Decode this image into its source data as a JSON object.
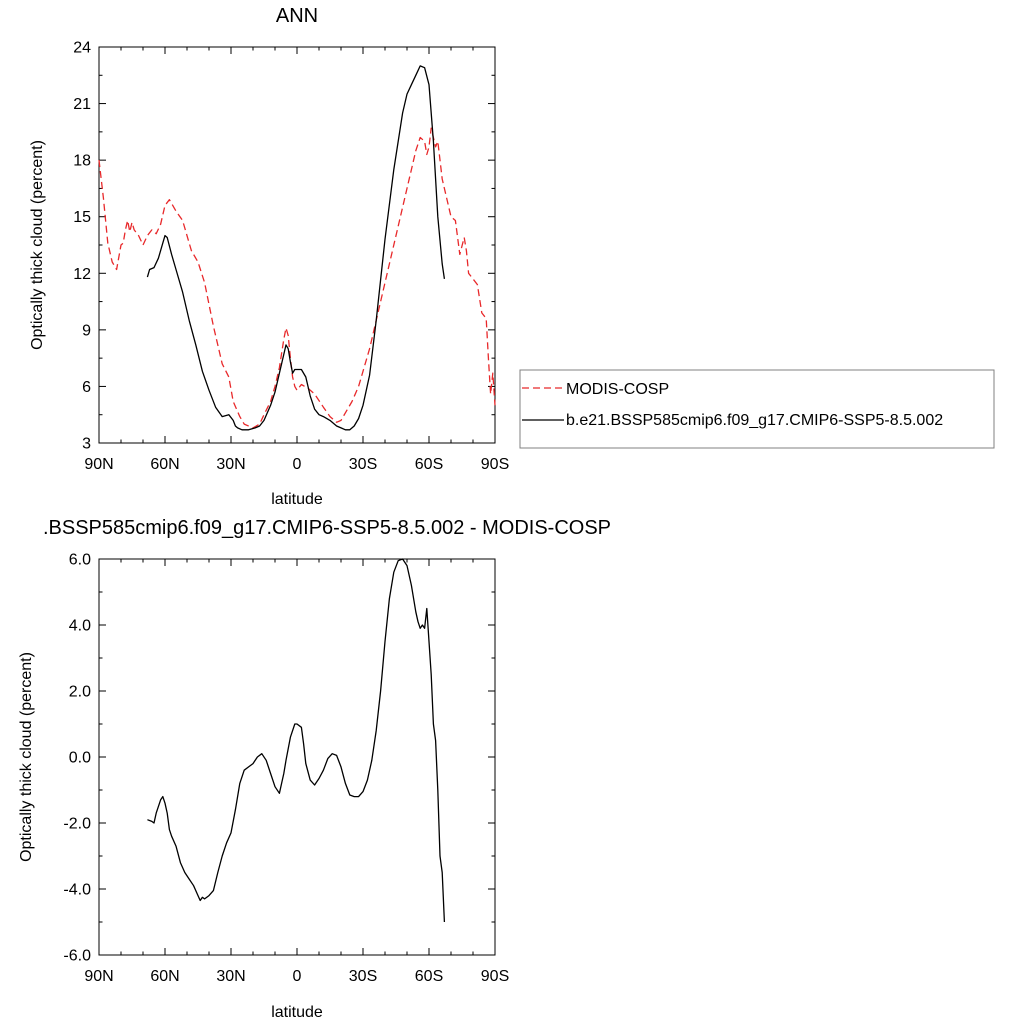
{
  "chart_data": [
    {
      "type": "line",
      "title": "ANN",
      "xlabel": "latitude",
      "ylabel": "Optically thick cloud (percent)",
      "xlim": [
        -90,
        90
      ],
      "ylim": [
        3,
        24
      ],
      "xticks": [
        {
          "value": -90,
          "label": "90N"
        },
        {
          "value": -60,
          "label": "60N"
        },
        {
          "value": -30,
          "label": "30N"
        },
        {
          "value": 0,
          "label": "0"
        },
        {
          "value": 30,
          "label": "30S"
        },
        {
          "value": 60,
          "label": "60S"
        },
        {
          "value": 90,
          "label": "90S"
        }
      ],
      "yticks": [
        {
          "value": 3,
          "label": "3"
        },
        {
          "value": 6,
          "label": "6"
        },
        {
          "value": 9,
          "label": "9"
        },
        {
          "value": 12,
          "label": "12"
        },
        {
          "value": 15,
          "label": "15"
        },
        {
          "value": 18,
          "label": "18"
        },
        {
          "value": 21,
          "label": "21"
        },
        {
          "value": 24,
          "label": "24"
        }
      ],
      "legend_position": "right",
      "series": [
        {
          "name": "MODIS-COSP",
          "color": "#e8292b",
          "dash": "dashed",
          "x": [
            -90,
            -88,
            -86,
            -84,
            -82,
            -80,
            -79,
            -78,
            -77,
            -76,
            -75,
            -74,
            -72,
            -70,
            -68,
            -66,
            -64,
            -62,
            -60,
            -58,
            -55,
            -52,
            -48,
            -45,
            -42,
            -38,
            -34,
            -31,
            -29,
            -26,
            -24,
            -20,
            -17,
            -15,
            -12,
            -10,
            -8,
            -6,
            -5,
            -4,
            -3,
            -2,
            -1,
            0,
            2,
            5,
            8,
            12,
            15,
            18,
            20,
            22,
            25,
            28,
            30,
            33,
            36,
            40,
            44,
            48,
            50,
            52,
            54,
            56,
            58,
            59,
            60,
            61,
            62,
            63,
            64,
            65,
            66,
            68,
            70,
            72,
            74,
            76,
            77,
            78,
            80,
            82,
            84,
            86,
            87,
            88,
            89,
            90
          ],
          "y": [
            18.0,
            16.0,
            13.6,
            12.6,
            12.2,
            13.5,
            13.6,
            14.3,
            14.8,
            14.2,
            14.7,
            14.3,
            14.0,
            13.5,
            14.0,
            14.3,
            14.1,
            14.6,
            15.6,
            15.9,
            15.3,
            14.8,
            13.2,
            12.6,
            11.5,
            9.2,
            7.2,
            6.5,
            5.2,
            4.4,
            4.0,
            3.8,
            4.0,
            4.5,
            5.2,
            6.0,
            7.0,
            8.5,
            9.1,
            8.7,
            7.5,
            6.5,
            6.0,
            5.8,
            6.1,
            5.9,
            5.6,
            4.9,
            4.4,
            4.1,
            4.2,
            4.6,
            5.2,
            6.0,
            6.8,
            8.0,
            9.5,
            11.5,
            13.5,
            15.5,
            16.5,
            17.5,
            18.5,
            19.2,
            19.0,
            18.3,
            18.7,
            19.7,
            19.2,
            18.7,
            19.0,
            18.0,
            17.0,
            16.0,
            15.0,
            14.8,
            13.0,
            13.9,
            13.2,
            12.0,
            11.7,
            11.4,
            9.9,
            9.6,
            7.5,
            5.6,
            6.7,
            5.0
          ]
        },
        {
          "name": "b.e21.BSSP585cmip6.f09_g17.CMIP6-SSP5-8.5.002",
          "color": "#000000",
          "dash": "solid",
          "x": [
            -68,
            -67,
            -65,
            -63,
            -61,
            -60,
            -59,
            -57,
            -55,
            -52,
            -49,
            -46,
            -43,
            -40,
            -37,
            -34,
            -31,
            -29,
            -28,
            -27,
            -25,
            -22,
            -19,
            -17,
            -15,
            -12,
            -10,
            -8,
            -6,
            -5,
            -4,
            -3,
            -2,
            -1,
            0,
            2,
            4,
            6,
            8,
            10,
            12,
            15,
            18,
            20,
            22,
            24,
            26,
            28,
            30,
            33,
            36,
            40,
            44,
            48,
            50,
            52,
            54,
            56,
            58,
            60,
            62,
            64,
            66,
            67
          ],
          "y": [
            11.8,
            12.2,
            12.3,
            12.8,
            13.6,
            14.0,
            13.9,
            13.0,
            12.2,
            11.0,
            9.5,
            8.2,
            6.8,
            5.8,
            4.9,
            4.4,
            4.5,
            4.2,
            3.9,
            3.8,
            3.7,
            3.7,
            3.8,
            3.9,
            4.2,
            5.0,
            5.7,
            6.7,
            7.7,
            8.2,
            8.0,
            7.3,
            6.7,
            6.9,
            6.9,
            6.9,
            6.5,
            5.5,
            4.8,
            4.5,
            4.4,
            4.2,
            3.9,
            3.8,
            3.7,
            3.7,
            3.9,
            4.3,
            5.0,
            6.6,
            9.5,
            13.8,
            17.5,
            20.5,
            21.5,
            22.0,
            22.5,
            23.0,
            22.9,
            22.0,
            19.0,
            15.0,
            12.5,
            11.7
          ]
        }
      ]
    },
    {
      "type": "line",
      "title": ".BSSP585cmip6.f09_g17.CMIP6-SSP5-8.5.002 - MODIS-COSP",
      "xlabel": "latitude",
      "ylabel": "Optically thick cloud (percent)",
      "xlim": [
        -90,
        90
      ],
      "ylim": [
        -6,
        6
      ],
      "xticks": [
        {
          "value": -90,
          "label": "90N"
        },
        {
          "value": -60,
          "label": "60N"
        },
        {
          "value": -30,
          "label": "30N"
        },
        {
          "value": 0,
          "label": "0"
        },
        {
          "value": 30,
          "label": "30S"
        },
        {
          "value": 60,
          "label": "60S"
        },
        {
          "value": 90,
          "label": "90S"
        }
      ],
      "yticks": [
        {
          "value": -6,
          "label": "-6.0"
        },
        {
          "value": -4,
          "label": "-4.0"
        },
        {
          "value": -2,
          "label": "-2.0"
        },
        {
          "value": 0,
          "label": "0.0"
        },
        {
          "value": 2,
          "label": "2.0"
        },
        {
          "value": 4,
          "label": "4.0"
        },
        {
          "value": 6,
          "label": "6.0"
        }
      ],
      "series": [
        {
          "name": "",
          "color": "#000000",
          "dash": "solid",
          "x": [
            -68,
            -66,
            -65,
            -64,
            -62,
            -61,
            -60,
            -59,
            -58,
            -57,
            -55,
            -53,
            -51,
            -49,
            -47,
            -45,
            -44,
            -43,
            -42,
            -40,
            -38,
            -36,
            -34,
            -32,
            -30,
            -28,
            -26,
            -24,
            -22,
            -20,
            -18,
            -16,
            -14,
            -12,
            -10,
            -8,
            -7,
            -6,
            -5,
            -3,
            -1,
            0,
            2,
            3,
            4,
            6,
            8,
            10,
            12,
            14,
            16,
            18,
            20,
            22,
            24,
            26,
            28,
            30,
            32,
            34,
            36,
            38,
            40,
            42,
            44,
            46,
            48,
            50,
            52,
            54,
            55,
            56,
            57,
            58,
            59,
            60,
            61,
            62,
            63,
            64,
            65,
            66,
            67
          ],
          "y": [
            -1.9,
            -1.95,
            -2.0,
            -1.7,
            -1.3,
            -1.2,
            -1.4,
            -1.7,
            -2.2,
            -2.4,
            -2.7,
            -3.2,
            -3.5,
            -3.7,
            -3.9,
            -4.2,
            -4.35,
            -4.25,
            -4.3,
            -4.2,
            -4.05,
            -3.5,
            -3.0,
            -2.6,
            -2.3,
            -1.6,
            -0.8,
            -0.4,
            -0.3,
            -0.2,
            0.0,
            0.1,
            -0.1,
            -0.5,
            -0.9,
            -1.1,
            -0.8,
            -0.5,
            -0.1,
            0.6,
            1.0,
            1.0,
            0.9,
            0.4,
            -0.2,
            -0.7,
            -0.85,
            -0.65,
            -0.4,
            -0.05,
            0.1,
            0.05,
            -0.3,
            -0.8,
            -1.15,
            -1.2,
            -1.2,
            -1.05,
            -0.7,
            -0.1,
            0.8,
            2.0,
            3.5,
            4.8,
            5.6,
            5.95,
            6.0,
            5.8,
            5.2,
            4.4,
            4.1,
            3.9,
            4.0,
            3.9,
            4.5,
            3.5,
            2.5,
            1.0,
            0.5,
            -1.0,
            -3.0,
            -3.5,
            -5.0
          ]
        }
      ]
    }
  ]
}
